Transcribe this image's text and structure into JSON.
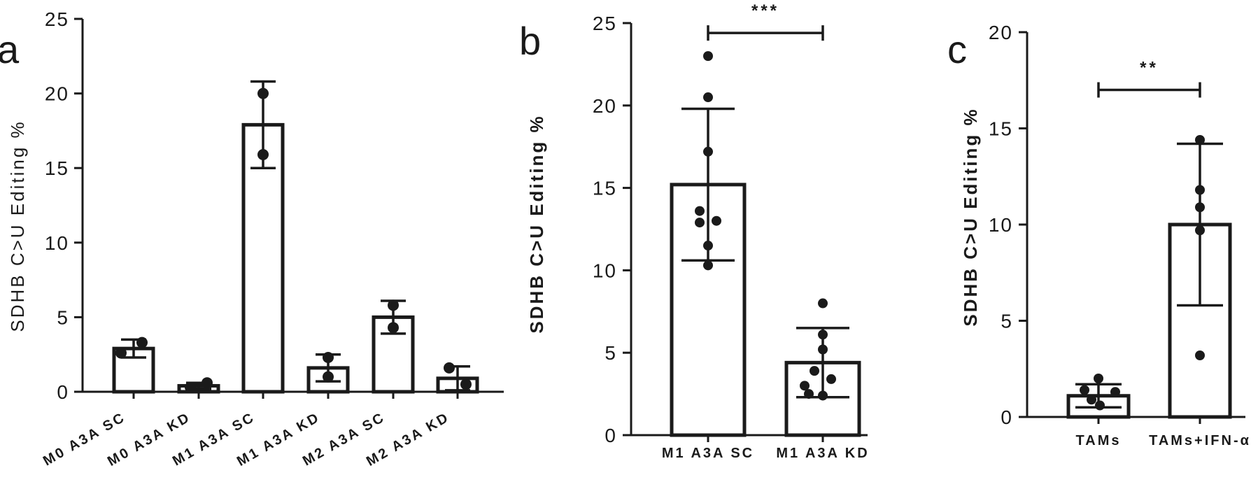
{
  "chart_data": [
    {
      "panel": "a",
      "type": "bar",
      "ylabel": "SDHB C>U Editing %",
      "ylim": [
        0,
        25
      ],
      "yticks": [
        0,
        5,
        10,
        15,
        20,
        25
      ],
      "categories": [
        "M0 A3A SC",
        "M0 A3A KD",
        "M1 A3A SC",
        "M1 A3A KD",
        "M2 A3A SC",
        "M2 A3A KD"
      ],
      "values": [
        2.9,
        0.4,
        17.9,
        1.6,
        5.0,
        0.9
      ],
      "error": [
        0.6,
        0.2,
        2.9,
        0.9,
        1.1,
        0.8
      ],
      "points": [
        [
          2.6,
          3.3
        ],
        [
          0.3,
          0.6
        ],
        [
          20.0,
          15.9
        ],
        [
          2.3,
          1.0
        ],
        [
          5.8,
          4.3
        ],
        [
          1.6,
          0.5
        ]
      ],
      "significance": []
    },
    {
      "panel": "b",
      "type": "bar",
      "ylabel": "SDHB C>U Editing %",
      "ylim": [
        0,
        25
      ],
      "yticks": [
        0,
        5,
        10,
        15,
        20,
        25
      ],
      "categories": [
        "M1  A3A SC",
        "M1  A3A KD"
      ],
      "values": [
        15.2,
        4.4
      ],
      "error": [
        4.6,
        2.1
      ],
      "points": [
        [
          23.0,
          20.5,
          17.2,
          13.6,
          12.9,
          13.0,
          11.5,
          10.3
        ],
        [
          8.0,
          6.1,
          5.2,
          3.9,
          3.0,
          3.4,
          2.5,
          2.4
        ]
      ],
      "significance": [
        {
          "label": "***",
          "between": [
            0,
            1
          ],
          "y": 24.4
        }
      ]
    },
    {
      "panel": "c",
      "type": "bar",
      "ylabel": "SDHB C>U Editing %",
      "ylim": [
        0,
        20
      ],
      "yticks": [
        0,
        5,
        10,
        15,
        20
      ],
      "categories": [
        "TAMs",
        "TAMs+IFN-α"
      ],
      "values": [
        1.1,
        10.0
      ],
      "error": [
        0.6,
        4.2
      ],
      "points": [
        [
          2.0,
          1.4,
          1.3,
          0.9,
          0.6
        ],
        [
          14.4,
          11.8,
          10.9,
          9.7,
          3.2
        ]
      ],
      "significance": [
        {
          "label": "**",
          "between": [
            0,
            1
          ],
          "y": 17.0
        }
      ]
    }
  ]
}
